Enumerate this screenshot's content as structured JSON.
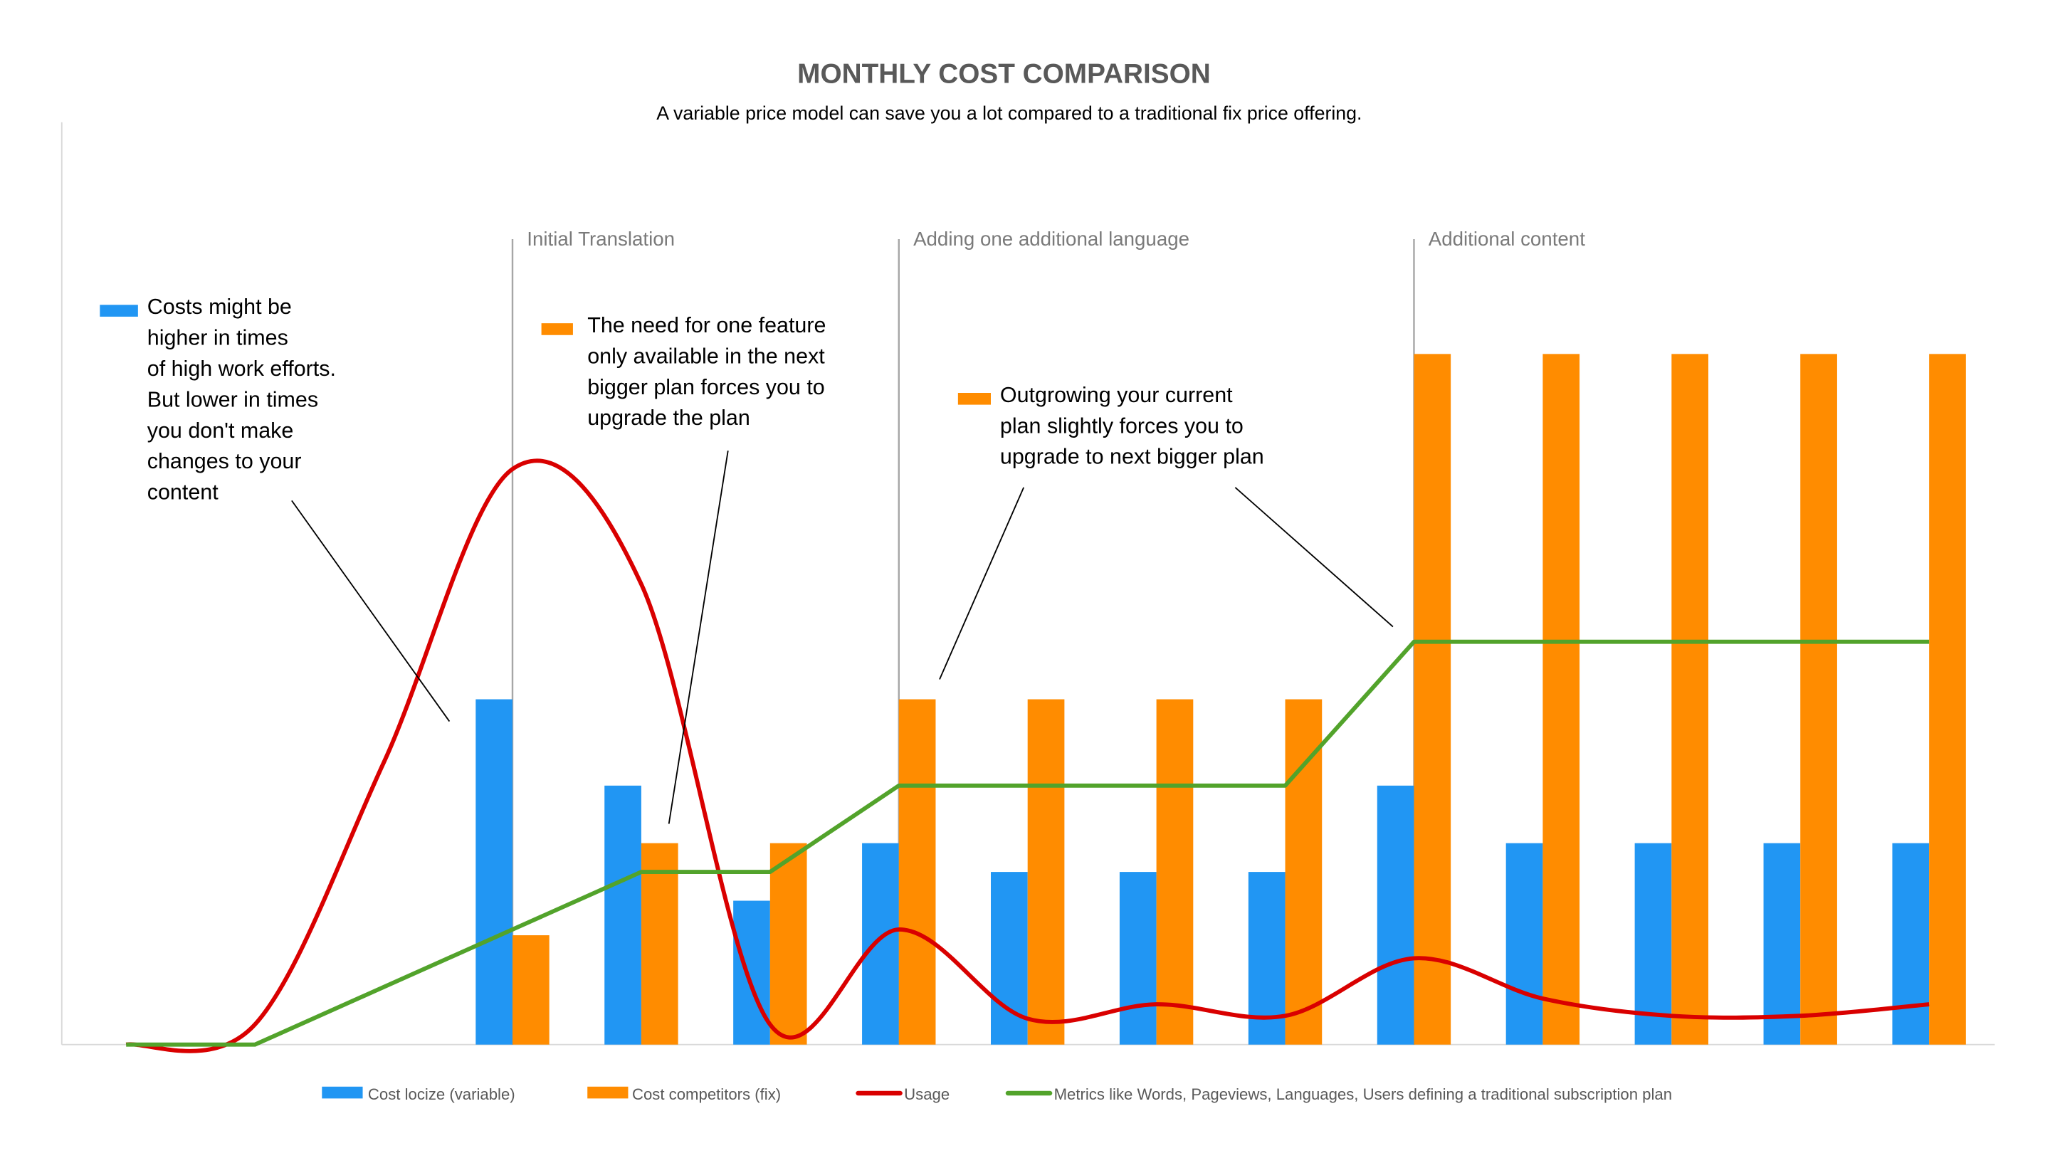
{
  "chart_data": {
    "type": "bar",
    "title": "MONTHLY COST COMPARISON",
    "subtitle": "A variable price model can save you a lot compared to a traditional fix price offering.",
    "xlabel": "",
    "ylabel": "",
    "categories": [
      "1",
      "2",
      "3",
      "4",
      "5",
      "6",
      "7",
      "8",
      "9",
      "10",
      "11",
      "12",
      "13",
      "14",
      "15"
    ],
    "category_labels_shown": false,
    "y_axis_labels_shown": false,
    "grid": false,
    "ylim": [
      0,
      32
    ],
    "legend_position": "bottom",
    "series": [
      {
        "name": "Cost locize (variable)",
        "kind": "bar",
        "color": "#2196F3",
        "values": [
          null,
          null,
          null,
          12,
          9,
          5,
          7,
          6,
          6,
          6,
          9,
          7,
          7,
          7,
          7
        ]
      },
      {
        "name": "Cost competitors (fix)",
        "kind": "bar",
        "color": "#FF8C00",
        "values": [
          null,
          null,
          null,
          3.8,
          7,
          7,
          12,
          12,
          12,
          12,
          24,
          24,
          24,
          24,
          24
        ]
      },
      {
        "name": "Usage",
        "kind": "line",
        "smooth": true,
        "color": "#D90000",
        "values": [
          0,
          0.7,
          9.8,
          20,
          16,
          0.7,
          4,
          0.9,
          1.4,
          1,
          3,
          1.6,
          1,
          1,
          1.4
        ]
      },
      {
        "name": "Metrics like Words, Pageviews, Languages, Users defining a traditional subscription plan",
        "kind": "line",
        "smooth": false,
        "color": "#52A32B",
        "values": [
          0,
          0,
          2,
          4,
          6,
          6,
          9,
          9,
          9,
          9,
          14,
          14,
          14,
          14,
          14
        ]
      }
    ],
    "phase_markers": [
      {
        "category_index": 3,
        "label": "Initial Translation"
      },
      {
        "category_index": 6,
        "label": "Adding one additional language"
      },
      {
        "category_index": 10,
        "label": "Additional content"
      }
    ],
    "annotations": [
      {
        "marker_color": "#2196F3",
        "lines": [
          "Costs might be",
          "higher in times",
          "of high work efforts.",
          "But lower in times",
          "you don't make",
          "changes to your",
          "content"
        ]
      },
      {
        "marker_color": "#FF8C00",
        "lines": [
          "The need for one feature",
          "only available in the next",
          "bigger plan forces you to",
          "upgrade the plan"
        ]
      },
      {
        "marker_color": "#FF8C00",
        "lines": [
          "Outgrowing your current",
          "plan slightly forces you to",
          "upgrade to next bigger plan"
        ]
      }
    ]
  }
}
